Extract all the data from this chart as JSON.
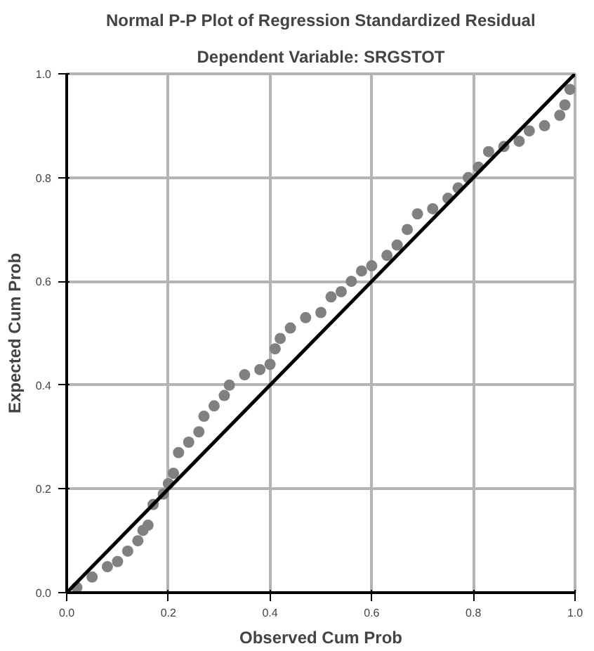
{
  "chart_data": {
    "type": "scatter",
    "title": "Normal P-P Plot of Regression Standardized Residual",
    "subtitle": "Dependent Variable: SRGSTOT",
    "xlabel": "Observed Cum Prob",
    "ylabel": "Expected Cum Prob",
    "xlim": [
      0,
      1
    ],
    "ylim": [
      0,
      1
    ],
    "xticks": [
      {
        "value": 0,
        "label": "0.0"
      },
      {
        "value": 0.2,
        "label": "0.2"
      },
      {
        "value": 0.4,
        "label": "0.4"
      },
      {
        "value": 0.6,
        "label": "0.6"
      },
      {
        "value": 0.8,
        "label": "0.8"
      },
      {
        "value": 1,
        "label": "1.0"
      }
    ],
    "yticks": [
      {
        "value": 0,
        "label": "0.0"
      },
      {
        "value": 0.2,
        "label": "0.2"
      },
      {
        "value": 0.4,
        "label": "0.4"
      },
      {
        "value": 0.6,
        "label": "0.6"
      },
      {
        "value": 0.8,
        "label": "0.8"
      },
      {
        "value": 1,
        "label": "1.0"
      }
    ],
    "grid": true,
    "series": [
      {
        "marker": "circle",
        "color": "#808080",
        "x": [
          0.02,
          0.05,
          0.08,
          0.1,
          0.12,
          0.14,
          0.15,
          0.16,
          0.17,
          0.19,
          0.2,
          0.21,
          0.22,
          0.24,
          0.26,
          0.27,
          0.29,
          0.31,
          0.32,
          0.35,
          0.38,
          0.4,
          0.41,
          0.42,
          0.44,
          0.47,
          0.5,
          0.52,
          0.54,
          0.56,
          0.58,
          0.6,
          0.63,
          0.65,
          0.67,
          0.69,
          0.72,
          0.75,
          0.77,
          0.79,
          0.81,
          0.83,
          0.86,
          0.89,
          0.91,
          0.94,
          0.97,
          0.98,
          0.99
        ],
        "values": [
          0.01,
          0.03,
          0.05,
          0.06,
          0.08,
          0.1,
          0.12,
          0.13,
          0.17,
          0.19,
          0.21,
          0.23,
          0.27,
          0.29,
          0.31,
          0.34,
          0.36,
          0.38,
          0.4,
          0.42,
          0.43,
          0.44,
          0.47,
          0.49,
          0.51,
          0.53,
          0.54,
          0.57,
          0.58,
          0.6,
          0.62,
          0.63,
          0.65,
          0.67,
          0.7,
          0.73,
          0.74,
          0.76,
          0.78,
          0.8,
          0.82,
          0.85,
          0.86,
          0.87,
          0.89,
          0.9,
          0.92,
          0.94,
          0.97
        ]
      },
      {
        "type": "line",
        "color": "#000000",
        "x": [
          0,
          1
        ],
        "values": [
          0,
          1
        ]
      }
    ]
  }
}
